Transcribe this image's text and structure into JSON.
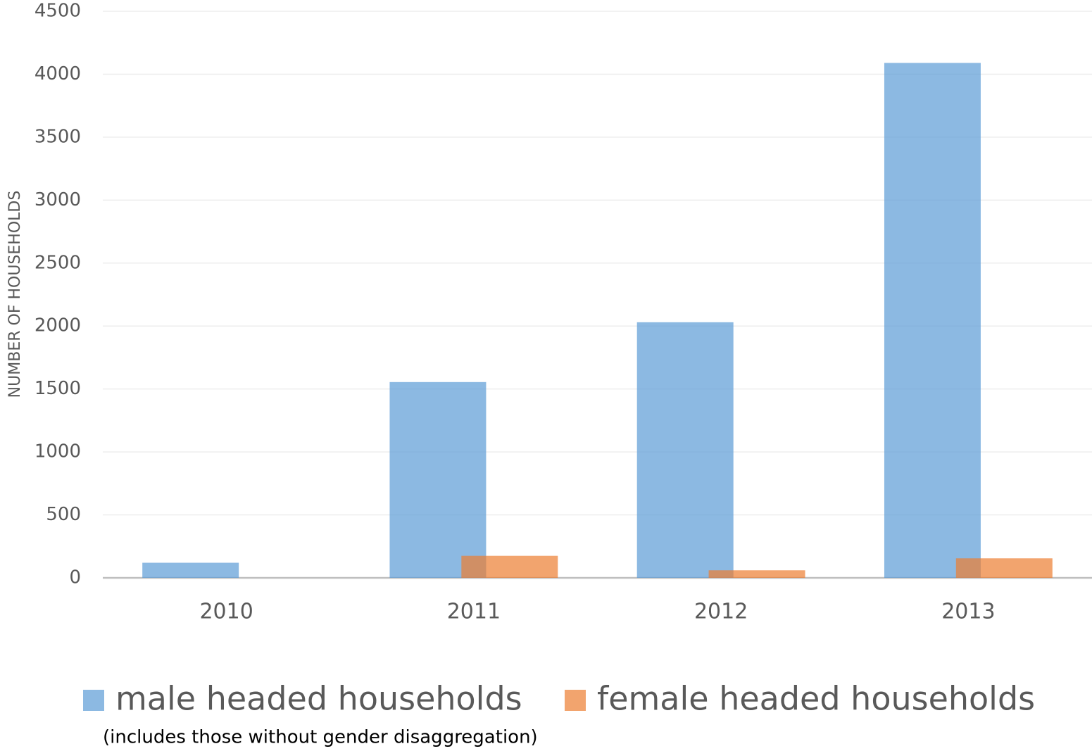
{
  "chart_data": {
    "type": "bar",
    "y_label": "NUMBER OF HOUSEHOLDS",
    "note": "(includes those without gender disaggregation)",
    "categories": [
      "2010",
      "2011",
      "2012",
      "2013"
    ],
    "series": [
      {
        "name": "male headed households",
        "color": "#5b9bd5",
        "values": [
          120,
          1555,
          2030,
          4090
        ]
      },
      {
        "name": "female headed households",
        "color": "#ed7d31",
        "values": [
          0,
          175,
          60,
          155
        ]
      }
    ],
    "ylim": [
      0,
      4500
    ],
    "yticks": [
      0,
      500,
      1000,
      1500,
      2000,
      2500,
      3000,
      3500,
      4000,
      4500
    ],
    "grid": true,
    "legend": "bottom"
  }
}
